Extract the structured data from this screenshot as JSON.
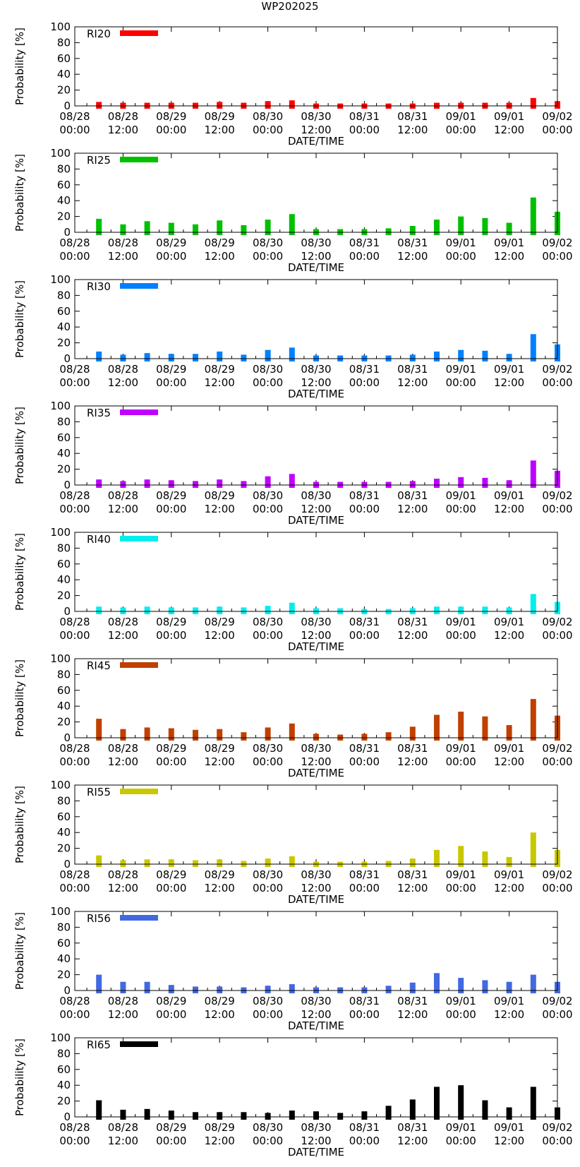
{
  "figure_title": "WP202025",
  "chart_data": [
    {
      "type": "bar",
      "title": "RI20",
      "color": "#ff0000",
      "ylabel": "Probability [%]",
      "xlabel": "DATE/TIME",
      "ylim": [
        0,
        100
      ],
      "values": [
        5,
        4,
        4,
        4,
        4,
        5,
        4,
        6,
        7,
        3,
        3,
        3,
        3,
        3,
        4,
        4,
        4,
        4,
        10,
        6
      ]
    },
    {
      "type": "bar",
      "title": "RI25",
      "color": "#00c000",
      "ylabel": "Probability [%]",
      "xlabel": "DATE/TIME",
      "ylim": [
        0,
        100
      ],
      "values": [
        17,
        10,
        14,
        12,
        10,
        15,
        9,
        16,
        23,
        4,
        4,
        4,
        5,
        8,
        16,
        20,
        18,
        12,
        44,
        26
      ]
    },
    {
      "type": "bar",
      "title": "RI30",
      "color": "#0080ff",
      "ylabel": "Probability [%]",
      "xlabel": "DATE/TIME",
      "ylim": [
        0,
        100
      ],
      "values": [
        9,
        5,
        7,
        6,
        6,
        9,
        5,
        11,
        14,
        4,
        4,
        4,
        4,
        5,
        9,
        11,
        10,
        6,
        31,
        18
      ]
    },
    {
      "type": "bar",
      "title": "RI35",
      "color": "#c000ff",
      "ylabel": "Probability [%]",
      "xlabel": "DATE/TIME",
      "ylim": [
        0,
        100
      ],
      "values": [
        7,
        5,
        7,
        6,
        5,
        7,
        5,
        11,
        14,
        4,
        4,
        4,
        4,
        5,
        8,
        10,
        9,
        6,
        31,
        18
      ]
    },
    {
      "type": "bar",
      "title": "RI40",
      "color": "#00eeee",
      "ylabel": "Probability [%]",
      "xlabel": "DATE/TIME",
      "ylim": [
        0,
        100
      ],
      "values": [
        6,
        5,
        6,
        5,
        5,
        6,
        5,
        7,
        11,
        4,
        4,
        3,
        3,
        4,
        6,
        6,
        6,
        5,
        22,
        12
      ]
    },
    {
      "type": "bar",
      "title": "RI45",
      "color": "#c04000",
      "ylabel": "Probability [%]",
      "xlabel": "DATE/TIME",
      "ylim": [
        0,
        100
      ],
      "values": [
        24,
        11,
        13,
        12,
        10,
        11,
        7,
        13,
        18,
        5,
        4,
        5,
        7,
        14,
        29,
        33,
        27,
        16,
        49,
        28
      ]
    },
    {
      "type": "bar",
      "title": "RI55",
      "color": "#c8c800",
      "ylabel": "Probability [%]",
      "xlabel": "DATE/TIME",
      "ylim": [
        0,
        100
      ],
      "values": [
        11,
        5,
        6,
        6,
        5,
        6,
        4,
        7,
        10,
        3,
        3,
        3,
        4,
        7,
        18,
        23,
        16,
        9,
        40,
        18
      ]
    },
    {
      "type": "bar",
      "title": "RI56",
      "color": "#4169e1",
      "ylabel": "Probability [%]",
      "xlabel": "DATE/TIME",
      "ylim": [
        0,
        100
      ],
      "values": [
        20,
        11,
        11,
        7,
        5,
        5,
        4,
        6,
        8,
        4,
        4,
        4,
        6,
        10,
        22,
        16,
        13,
        11,
        20,
        11
      ]
    },
    {
      "type": "bar",
      "title": "RI65",
      "color": "#000000",
      "ylabel": "Probability [%]",
      "xlabel": "DATE/TIME",
      "ylim": [
        0,
        100
      ],
      "values": [
        21,
        9,
        10,
        8,
        6,
        6,
        6,
        5,
        8,
        7,
        5,
        7,
        14,
        22,
        38,
        40,
        21,
        12,
        38,
        12
      ]
    }
  ],
  "axis": {
    "yticks": [
      "100",
      "80",
      "60",
      "40",
      "20",
      "0"
    ],
    "xtick_dates": [
      "08/28",
      "08/28",
      "08/29",
      "08/29",
      "08/30",
      "08/30",
      "08/31",
      "08/31",
      "09/01",
      "09/01",
      "09/02"
    ],
    "xtick_times": [
      "00:00",
      "12:00",
      "00:00",
      "12:00",
      "00:00",
      "12:00",
      "00:00",
      "12:00",
      "00:00",
      "12:00",
      "00:00"
    ]
  }
}
